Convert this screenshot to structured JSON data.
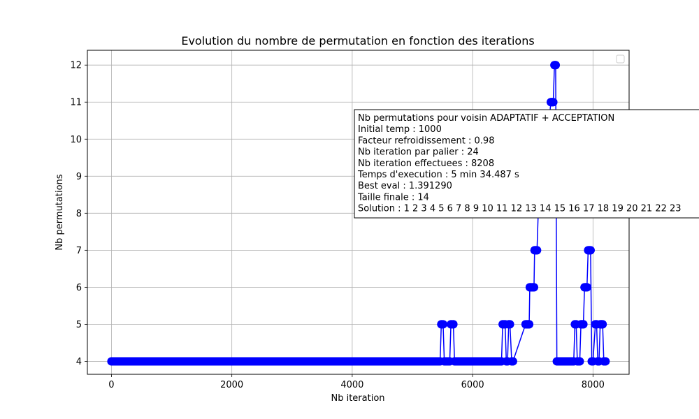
{
  "chart_data": {
    "type": "line",
    "title": "Evolution du nombre de permutation en fonction des iterations",
    "xlabel": "Nb iteration",
    "ylabel": "Nb permutations",
    "xlim": [
      -400,
      8600
    ],
    "ylim": [
      3.65,
      12.4
    ],
    "x_ticks": [
      0,
      2000,
      4000,
      6000,
      8000
    ],
    "x_tick_labels": [
      "0",
      "2000",
      "4000",
      "6000",
      "8000"
    ],
    "y_ticks": [
      4,
      5,
      6,
      7,
      8,
      9,
      10,
      11,
      12
    ],
    "y_tick_labels": [
      "4",
      "5",
      "6",
      "7",
      "8",
      "9",
      "10",
      "11",
      "12"
    ],
    "grid": true,
    "legend": "top-right",
    "legend_entries": [],
    "series_color": "#0000ff",
    "marker": "circle",
    "series": [
      {
        "x": [
          0,
          5460,
          5480,
          5510,
          5530,
          5620,
          5640,
          5680,
          5700,
          6480,
          6500,
          6540,
          6560,
          6580,
          6600,
          6620,
          6650,
          6670,
          6880,
          6900,
          6920,
          6940,
          6950,
          6970,
          7000,
          7020,
          7030,
          7050,
          7070,
          7090,
          7110,
          7130,
          7300,
          7320,
          7340,
          7360,
          7380,
          7400,
          7680,
          7700,
          7720,
          7740,
          7780,
          7800,
          7820,
          7840,
          7860,
          7880,
          7900,
          7920,
          7940,
          7960,
          7980,
          8000,
          8040,
          8060,
          8080,
          8100,
          8120,
          8140,
          8160,
          8180,
          8208
        ],
        "y": [
          4,
          4,
          5,
          5,
          4,
          4,
          5,
          5,
          4,
          4,
          5,
          5,
          4,
          4,
          5,
          5,
          4,
          4,
          5,
          5,
          5,
          5,
          6,
          6,
          6,
          6,
          7,
          7,
          7,
          8,
          8,
          8,
          11,
          11,
          11,
          12,
          12,
          4,
          4,
          5,
          5,
          4,
          4,
          5,
          5,
          5,
          6,
          6,
          6,
          7,
          7,
          7,
          4,
          4,
          5,
          5,
          4,
          4,
          5,
          5,
          5,
          4,
          4
        ]
      }
    ],
    "annotation_lines": [
      "Nb permutations pour voisin ADAPTATIF + ACCEPTATION",
      "Initial temp : 1000",
      "Facteur refroidissement : 0.98",
      "Nb iteration par palier : 24",
      "Nb iteration effectuees : 8208",
      "Temps d'execution : 5 min 34.487 s",
      "Best eval : 1.391290",
      "Taille finale : 14",
      "Solution : 1 2 3 4 5 6 7 8 9 10 11 12 13 14 15 16 17 18 19 20 21 22 23"
    ]
  }
}
